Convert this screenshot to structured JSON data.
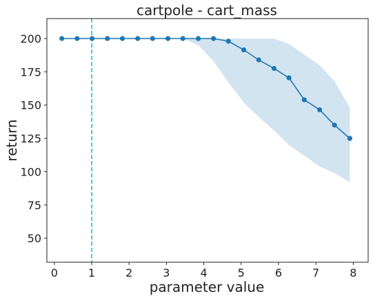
{
  "chart_data": {
    "type": "line",
    "title": "cartpole - cart_mass",
    "xlabel": "parameter value",
    "ylabel": "return",
    "xlim": [
      -0.2,
      8.4
    ],
    "ylim": [
      32,
      215
    ],
    "xticks": [
      0,
      1,
      2,
      3,
      4,
      5,
      6,
      7,
      8
    ],
    "yticks": [
      50,
      75,
      100,
      125,
      150,
      175,
      200
    ],
    "grid": false,
    "reference_line": {
      "x": 1.0,
      "style": "dashed",
      "color": "#17becf"
    },
    "series": [
      {
        "color": "#1f77b4",
        "band_color": "#1f77b4",
        "x": [
          0.2,
          0.61,
          1.01,
          1.42,
          1.82,
          2.23,
          2.63,
          3.04,
          3.44,
          3.85,
          4.26,
          4.66,
          5.07,
          5.47,
          5.88,
          6.28,
          6.69,
          7.1,
          7.5,
          7.91
        ],
        "y": [
          200,
          200,
          200,
          200,
          200,
          200,
          200,
          200,
          200,
          200,
          200,
          198,
          191.5,
          184,
          177.5,
          170.5,
          154,
          146.5,
          135,
          125
        ],
        "upper": [
          200,
          200,
          200,
          200,
          200,
          200,
          200,
          200,
          200,
          200,
          200,
          200,
          200,
          200,
          200,
          196,
          188,
          180,
          168,
          148
        ],
        "lower": [
          200,
          200,
          200,
          200,
          200,
          200,
          200,
          200,
          200,
          195,
          183,
          167,
          152,
          141,
          131,
          120,
          112,
          104,
          99,
          92
        ]
      }
    ]
  }
}
